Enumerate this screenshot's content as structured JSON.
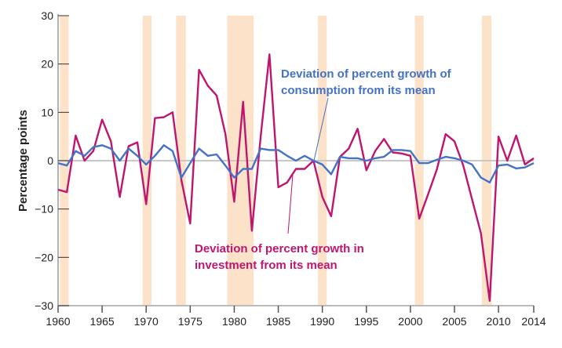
{
  "chart_data": {
    "type": "line",
    "title": "",
    "xlabel": "",
    "ylabel": "Percentage points",
    "xlim": [
      1960,
      2014
    ],
    "ylim": [
      -30,
      30
    ],
    "x_ticks": [
      "1960",
      "1965",
      "1970",
      "1975",
      "1980",
      "1985",
      "1990",
      "1995",
      "2000",
      "2005",
      "2010",
      "2014"
    ],
    "x_tick_values": [
      1960,
      1965,
      1970,
      1975,
      1980,
      1985,
      1990,
      1995,
      2000,
      2005,
      2010,
      2014
    ],
    "y_ticks": [
      "30",
      "20",
      "10",
      "0",
      "−10",
      "−20",
      "−30"
    ],
    "y_tick_values": [
      30,
      20,
      10,
      0,
      -10,
      -20,
      -30
    ],
    "grid": false,
    "zero_line": true,
    "recessions": [
      [
        1960.2,
        1961.2
      ],
      [
        1969.6,
        1970.6
      ],
      [
        1973.4,
        1974.5
      ],
      [
        1979.2,
        1982.2
      ],
      [
        1989.5,
        1990.5
      ],
      [
        2000.5,
        2001.5
      ],
      [
        2008.1,
        2009.2
      ]
    ],
    "recession_color": "#fbe2c8",
    "x": [
      1960,
      1961,
      1962,
      1963,
      1964,
      1965,
      1966,
      1967,
      1968,
      1969,
      1970,
      1971,
      1972,
      1973,
      1974,
      1975,
      1976,
      1977,
      1978,
      1979,
      1980,
      1981,
      1982,
      1983,
      1984,
      1985,
      1986,
      1987,
      1988,
      1989,
      1990,
      1991,
      1992,
      1993,
      1994,
      1995,
      1996,
      1997,
      1998,
      1999,
      2000,
      2001,
      2002,
      2003,
      2004,
      2005,
      2006,
      2007,
      2008,
      2009,
      2010,
      2011,
      2012,
      2013,
      2014
    ],
    "series": [
      {
        "name": "Deviation of percent growth in investment from its mean",
        "color": "#c0156f",
        "values": [
          -6,
          -6.5,
          5.2,
          0,
          2,
          8.5,
          4,
          -7.5,
          3,
          3.8,
          -9,
          8.8,
          9,
          10,
          -4,
          -13,
          18.8,
          15.5,
          13.5,
          5.5,
          -8.5,
          12.2,
          -14.5,
          5,
          22,
          -5.5,
          -4.5,
          -1.7,
          -1.7,
          0,
          -7.5,
          -11.5,
          0.8,
          2.5,
          6.6,
          -2,
          2,
          4.5,
          1.7,
          1.5,
          1,
          -12,
          -7,
          -1.8,
          5.5,
          4,
          -1,
          -8,
          -15,
          -29,
          5,
          0,
          5.2,
          -0.8,
          0.5
        ]
      },
      {
        "name": "Deviation of percent growth of consumption from its mean",
        "color": "#4472c4",
        "values": [
          -0.5,
          -1,
          2,
          1,
          2.8,
          3.2,
          2.5,
          0,
          2.5,
          1,
          -0.8,
          1,
          3.2,
          2,
          -3.5,
          -0.5,
          2.5,
          1,
          1.3,
          -1,
          -3.5,
          -1.7,
          -1.7,
          2.5,
          2.2,
          2.2,
          1,
          0,
          1,
          0,
          -0.8,
          -2.8,
          0.8,
          0.5,
          0.5,
          0,
          0.5,
          0.8,
          2.2,
          2.2,
          2,
          -0.5,
          -0.5,
          0.2,
          0.8,
          0.5,
          0,
          -0.8,
          -3.5,
          -4.5,
          -1,
          -0.8,
          -1.6,
          -1.4,
          -0.5
        ]
      }
    ],
    "annotations": {
      "consumption_line1": "Deviation of percent growth of",
      "consumption_line2": "consumption from its mean",
      "investment_line1": "Deviation of percent growth in",
      "investment_line2": "investment from its mean"
    }
  }
}
